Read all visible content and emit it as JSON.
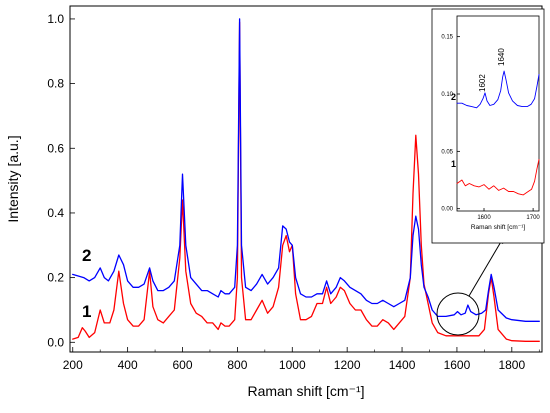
{
  "chart_data": [
    {
      "type": "line",
      "xlabel": "Raman shift [cm⁻¹]",
      "ylabel": "Intensity [a.u.]",
      "xlim": [
        190,
        1910
      ],
      "ylim": [
        -0.03,
        1.04
      ],
      "x_ticks": [
        "200",
        "400",
        "600",
        "800",
        "1000",
        "1200",
        "1400",
        "1600",
        "1800"
      ],
      "y_ticks": [
        "0.0",
        "0.2",
        "0.4",
        "0.6",
        "0.8",
        "1.0"
      ],
      "grid": false,
      "series": [
        {
          "name": "1",
          "color": "#ff0000",
          "points": [
            [
              200,
              0.01
            ],
            [
              220,
              0.015
            ],
            [
              235,
              0.045
            ],
            [
              245,
              0.035
            ],
            [
              260,
              0.015
            ],
            [
              280,
              0.03
            ],
            [
              300,
              0.1
            ],
            [
              315,
              0.06
            ],
            [
              335,
              0.06
            ],
            [
              350,
              0.1
            ],
            [
              368,
              0.22
            ],
            [
              385,
              0.12
            ],
            [
              400,
              0.07
            ],
            [
              420,
              0.05
            ],
            [
              440,
              0.05
            ],
            [
              460,
              0.07
            ],
            [
              480,
              0.22
            ],
            [
              492,
              0.11
            ],
            [
              510,
              0.07
            ],
            [
              530,
              0.06
            ],
            [
              550,
              0.08
            ],
            [
              570,
              0.1
            ],
            [
              590,
              0.26
            ],
            [
              600,
              0.44
            ],
            [
              612,
              0.22
            ],
            [
              630,
              0.12
            ],
            [
              650,
              0.09
            ],
            [
              670,
              0.08
            ],
            [
              690,
              0.06
            ],
            [
              710,
              0.06
            ],
            [
              730,
              0.04
            ],
            [
              740,
              0.06
            ],
            [
              755,
              0.05
            ],
            [
              770,
              0.05
            ],
            [
              790,
              0.07
            ],
            [
              800,
              0.2
            ],
            [
              808,
              0.99
            ],
            [
              815,
              0.2
            ],
            [
              830,
              0.07
            ],
            [
              850,
              0.07
            ],
            [
              870,
              0.1
            ],
            [
              890,
              0.13
            ],
            [
              910,
              0.09
            ],
            [
              930,
              0.11
            ],
            [
              950,
              0.17
            ],
            [
              965,
              0.3
            ],
            [
              978,
              0.33
            ],
            [
              990,
              0.28
            ],
            [
              1000,
              0.3
            ],
            [
              1012,
              0.15
            ],
            [
              1030,
              0.07
            ],
            [
              1050,
              0.07
            ],
            [
              1070,
              0.08
            ],
            [
              1090,
              0.12
            ],
            [
              1110,
              0.12
            ],
            [
              1125,
              0.17
            ],
            [
              1140,
              0.12
            ],
            [
              1160,
              0.14
            ],
            [
              1175,
              0.17
            ],
            [
              1190,
              0.16
            ],
            [
              1210,
              0.12
            ],
            [
              1230,
              0.1
            ],
            [
              1250,
              0.1
            ],
            [
              1270,
              0.07
            ],
            [
              1290,
              0.05
            ],
            [
              1310,
              0.05
            ],
            [
              1330,
              0.07
            ],
            [
              1350,
              0.06
            ],
            [
              1370,
              0.04
            ],
            [
              1390,
              0.06
            ],
            [
              1410,
              0.08
            ],
            [
              1430,
              0.2
            ],
            [
              1440,
              0.46
            ],
            [
              1450,
              0.64
            ],
            [
              1460,
              0.52
            ],
            [
              1470,
              0.3
            ],
            [
              1480,
              0.18
            ],
            [
              1495,
              0.12
            ],
            [
              1510,
              0.06
            ],
            [
              1530,
              0.03
            ],
            [
              1560,
              0.02
            ],
            [
              1600,
              0.02
            ],
            [
              1640,
              0.02
            ],
            [
              1680,
              0.02
            ],
            [
              1700,
              0.04
            ],
            [
              1715,
              0.15
            ],
            [
              1725,
              0.2
            ],
            [
              1735,
              0.14
            ],
            [
              1750,
              0.04
            ],
            [
              1780,
              0.01
            ],
            [
              1800,
              0.005
            ],
            [
              1850,
              0.003
            ],
            [
              1900,
              0.003
            ]
          ]
        },
        {
          "name": "2",
          "color": "#0000ff",
          "points": [
            [
              200,
              0.21
            ],
            [
              220,
              0.205
            ],
            [
              240,
              0.2
            ],
            [
              260,
              0.19
            ],
            [
              280,
              0.2
            ],
            [
              300,
              0.23
            ],
            [
              315,
              0.2
            ],
            [
              330,
              0.19
            ],
            [
              350,
              0.22
            ],
            [
              368,
              0.27
            ],
            [
              385,
              0.24
            ],
            [
              400,
              0.19
            ],
            [
              420,
              0.17
            ],
            [
              440,
              0.17
            ],
            [
              460,
              0.18
            ],
            [
              480,
              0.23
            ],
            [
              492,
              0.19
            ],
            [
              510,
              0.16
            ],
            [
              530,
              0.16
            ],
            [
              550,
              0.17
            ],
            [
              570,
              0.19
            ],
            [
              590,
              0.3
            ],
            [
              600,
              0.52
            ],
            [
              612,
              0.3
            ],
            [
              630,
              0.2
            ],
            [
              650,
              0.18
            ],
            [
              670,
              0.16
            ],
            [
              690,
              0.16
            ],
            [
              710,
              0.15
            ],
            [
              730,
              0.14
            ],
            [
              740,
              0.16
            ],
            [
              755,
              0.15
            ],
            [
              770,
              0.15
            ],
            [
              790,
              0.17
            ],
            [
              800,
              0.3
            ],
            [
              808,
              1.0
            ],
            [
              815,
              0.3
            ],
            [
              830,
              0.17
            ],
            [
              850,
              0.16
            ],
            [
              870,
              0.18
            ],
            [
              890,
              0.21
            ],
            [
              910,
              0.18
            ],
            [
              930,
              0.2
            ],
            [
              950,
              0.23
            ],
            [
              965,
              0.36
            ],
            [
              978,
              0.35
            ],
            [
              990,
              0.31
            ],
            [
              1000,
              0.3
            ],
            [
              1012,
              0.2
            ],
            [
              1030,
              0.15
            ],
            [
              1050,
              0.14
            ],
            [
              1070,
              0.14
            ],
            [
              1090,
              0.15
            ],
            [
              1110,
              0.15
            ],
            [
              1125,
              0.19
            ],
            [
              1140,
              0.15
            ],
            [
              1160,
              0.17
            ],
            [
              1175,
              0.2
            ],
            [
              1190,
              0.19
            ],
            [
              1210,
              0.17
            ],
            [
              1230,
              0.16
            ],
            [
              1250,
              0.15
            ],
            [
              1270,
              0.13
            ],
            [
              1290,
              0.12
            ],
            [
              1310,
              0.12
            ],
            [
              1330,
              0.13
            ],
            [
              1350,
              0.12
            ],
            [
              1370,
              0.11
            ],
            [
              1390,
              0.12
            ],
            [
              1410,
              0.13
            ],
            [
              1430,
              0.2
            ],
            [
              1440,
              0.33
            ],
            [
              1450,
              0.39
            ],
            [
              1460,
              0.35
            ],
            [
              1470,
              0.24
            ],
            [
              1480,
              0.17
            ],
            [
              1495,
              0.14
            ],
            [
              1510,
              0.1
            ],
            [
              1530,
              0.08
            ],
            [
              1560,
              0.08
            ],
            [
              1590,
              0.085
            ],
            [
              1602,
              0.095
            ],
            [
              1615,
              0.085
            ],
            [
              1630,
              0.09
            ],
            [
              1640,
              0.115
            ],
            [
              1650,
              0.095
            ],
            [
              1670,
              0.085
            ],
            [
              1690,
              0.09
            ],
            [
              1705,
              0.1
            ],
            [
              1715,
              0.16
            ],
            [
              1725,
              0.21
            ],
            [
              1735,
              0.17
            ],
            [
              1750,
              0.1
            ],
            [
              1780,
              0.075
            ],
            [
              1800,
              0.07
            ],
            [
              1850,
              0.065
            ],
            [
              1900,
              0.065
            ]
          ]
        }
      ],
      "annotations": [
        "1",
        "2"
      ]
    },
    {
      "type": "line",
      "xlabel": "Raman shift [cm⁻¹]",
      "xlim": [
        1545,
        1712
      ],
      "ylim": [
        -0.002,
        0.168
      ],
      "x_ticks": [
        "1600",
        "1700"
      ],
      "y_ticks": [
        "0.00",
        "0.05",
        "0.10",
        "0.15"
      ],
      "series": [
        {
          "name": "1",
          "color": "#ff0000",
          "points": [
            [
              1545,
              0.022
            ],
            [
              1555,
              0.025
            ],
            [
              1562,
              0.02
            ],
            [
              1570,
              0.022
            ],
            [
              1580,
              0.02
            ],
            [
              1590,
              0.019
            ],
            [
              1600,
              0.021
            ],
            [
              1610,
              0.017
            ],
            [
              1620,
              0.02
            ],
            [
              1630,
              0.016
            ],
            [
              1640,
              0.018
            ],
            [
              1650,
              0.015
            ],
            [
              1660,
              0.015
            ],
            [
              1670,
              0.013
            ],
            [
              1680,
              0.012
            ],
            [
              1690,
              0.015
            ],
            [
              1697,
              0.017
            ],
            [
              1703,
              0.024
            ],
            [
              1708,
              0.035
            ],
            [
              1712,
              0.043
            ]
          ]
        },
        {
          "name": "2",
          "color": "#0000ff",
          "points": [
            [
              1545,
              0.092
            ],
            [
              1555,
              0.092
            ],
            [
              1565,
              0.09
            ],
            [
              1575,
              0.089
            ],
            [
              1585,
              0.088
            ],
            [
              1592,
              0.091
            ],
            [
              1598,
              0.096
            ],
            [
              1602,
              0.101
            ],
            [
              1606,
              0.094
            ],
            [
              1612,
              0.09
            ],
            [
              1620,
              0.091
            ],
            [
              1628,
              0.095
            ],
            [
              1634,
              0.103
            ],
            [
              1638,
              0.115
            ],
            [
              1641,
              0.12
            ],
            [
              1645,
              0.112
            ],
            [
              1650,
              0.101
            ],
            [
              1658,
              0.094
            ],
            [
              1668,
              0.09
            ],
            [
              1678,
              0.089
            ],
            [
              1688,
              0.089
            ],
            [
              1696,
              0.091
            ],
            [
              1703,
              0.096
            ],
            [
              1708,
              0.107
            ],
            [
              1712,
              0.117
            ]
          ]
        }
      ],
      "annotations": [
        "1602",
        "1640",
        "2",
        "1"
      ]
    }
  ]
}
